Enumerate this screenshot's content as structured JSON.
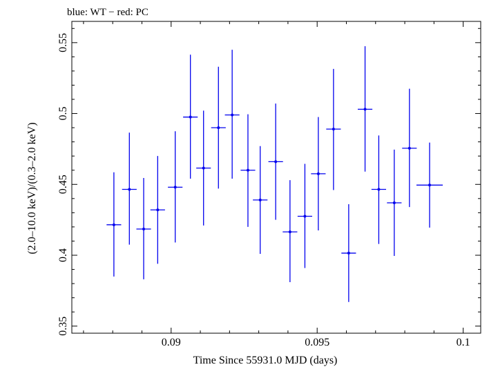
{
  "chart_data": {
    "type": "scatter",
    "title": "blue: WT − red: PC",
    "xlabel": "Time Since 55931.0 MJD (days)",
    "ylabel": "(2.0–10.0 keV)/(0.3–2.0 keV)",
    "xlim": [
      0.0866,
      0.1006
    ],
    "ylim": [
      0.345,
      0.565
    ],
    "xticks": [
      {
        "value": 0.09,
        "label": "0.09"
      },
      {
        "value": 0.095,
        "label": "0.095"
      },
      {
        "value": 0.1,
        "label": "0.1"
      }
    ],
    "yticks": [
      {
        "value": 0.35,
        "label": "0.35"
      },
      {
        "value": 0.4,
        "label": "0.4"
      },
      {
        "value": 0.45,
        "label": "0.45"
      },
      {
        "value": 0.5,
        "label": "0.5"
      },
      {
        "value": 0.55,
        "label": "0.55"
      }
    ],
    "grid": false,
    "series": [
      {
        "color": "#0000ee",
        "points": [
          {
            "x": 0.08804,
            "y": 0.4215,
            "xerr": 0.00025,
            "ylo": 0.385,
            "yhi": 0.4585
          },
          {
            "x": 0.08857,
            "y": 0.4465,
            "xerr": 0.00025,
            "ylo": 0.4075,
            "yhi": 0.4865
          },
          {
            "x": 0.08906,
            "y": 0.4185,
            "xerr": 0.00025,
            "ylo": 0.383,
            "yhi": 0.4545
          },
          {
            "x": 0.08954,
            "y": 0.432,
            "xerr": 0.00025,
            "ylo": 0.394,
            "yhi": 0.47
          },
          {
            "x": 0.09014,
            "y": 0.448,
            "xerr": 0.00025,
            "ylo": 0.409,
            "yhi": 0.4875
          },
          {
            "x": 0.09066,
            "y": 0.4975,
            "xerr": 0.00025,
            "ylo": 0.454,
            "yhi": 0.5415
          },
          {
            "x": 0.09111,
            "y": 0.4615,
            "xerr": 0.00025,
            "ylo": 0.421,
            "yhi": 0.502
          },
          {
            "x": 0.09162,
            "y": 0.49,
            "xerr": 0.00025,
            "ylo": 0.447,
            "yhi": 0.533
          },
          {
            "x": 0.09209,
            "y": 0.499,
            "xerr": 0.00025,
            "ylo": 0.454,
            "yhi": 0.545
          },
          {
            "x": 0.09263,
            "y": 0.46,
            "xerr": 0.00025,
            "ylo": 0.42,
            "yhi": 0.4995
          },
          {
            "x": 0.09305,
            "y": 0.439,
            "xerr": 0.00025,
            "ylo": 0.401,
            "yhi": 0.477
          },
          {
            "x": 0.09358,
            "y": 0.466,
            "xerr": 0.00025,
            "ylo": 0.425,
            "yhi": 0.507
          },
          {
            "x": 0.09407,
            "y": 0.4165,
            "xerr": 0.00025,
            "ylo": 0.381,
            "yhi": 0.453
          },
          {
            "x": 0.09458,
            "y": 0.4275,
            "xerr": 0.00025,
            "ylo": 0.391,
            "yhi": 0.4645
          },
          {
            "x": 0.09504,
            "y": 0.4575,
            "xerr": 0.00025,
            "ylo": 0.4175,
            "yhi": 0.4975
          },
          {
            "x": 0.09556,
            "y": 0.489,
            "xerr": 0.00025,
            "ylo": 0.446,
            "yhi": 0.5315
          },
          {
            "x": 0.09608,
            "y": 0.4015,
            "xerr": 0.00025,
            "ylo": 0.367,
            "yhi": 0.436
          },
          {
            "x": 0.09664,
            "y": 0.503,
            "xerr": 0.00025,
            "ylo": 0.459,
            "yhi": 0.5475
          },
          {
            "x": 0.09711,
            "y": 0.4465,
            "xerr": 0.00025,
            "ylo": 0.408,
            "yhi": 0.4845
          },
          {
            "x": 0.09764,
            "y": 0.437,
            "xerr": 0.00025,
            "ylo": 0.3995,
            "yhi": 0.4745
          },
          {
            "x": 0.09816,
            "y": 0.4755,
            "xerr": 0.00025,
            "ylo": 0.434,
            "yhi": 0.5175
          },
          {
            "x": 0.09885,
            "y": 0.4495,
            "xerr": 0.00045,
            "ylo": 0.4195,
            "yhi": 0.4795
          }
        ]
      }
    ]
  }
}
